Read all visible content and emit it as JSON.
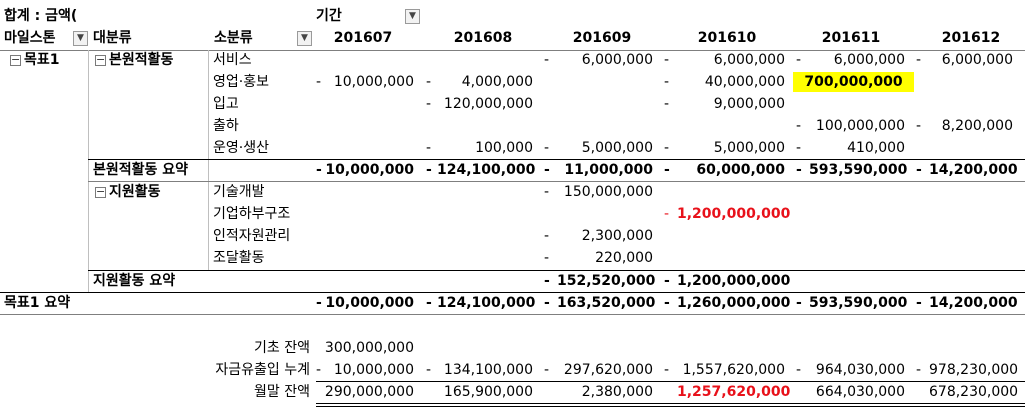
{
  "pivot": {
    "corner_label": "합계 : 금액(",
    "period_label": "기간",
    "milestone_label": "마일스톤",
    "category_label": "대분류",
    "subcategory_label": "소분류",
    "columns": [
      "201607",
      "201608",
      "201609",
      "201610",
      "201611",
      "201612"
    ],
    "dash": "-",
    "goal": "목표1",
    "group1": {
      "label": "본원적활동",
      "rows": [
        {
          "label": "서비스",
          "values": [
            "",
            "",
            "6,000,000",
            "6,000,000",
            "6,000,000",
            "6,000,000"
          ]
        },
        {
          "label": "영업·홍보",
          "values": [
            "10,000,000",
            "4,000,000",
            "",
            "40,000,000",
            "700,000,000",
            ""
          ]
        },
        {
          "label": "입고",
          "values": [
            "",
            "120,000,000",
            "",
            "9,000,000",
            "",
            ""
          ]
        },
        {
          "label": "출하",
          "values": [
            "",
            "",
            "",
            "",
            "100,000,000",
            "8,200,000"
          ]
        },
        {
          "label": "운영·생산",
          "values": [
            "",
            "100,000",
            "5,000,000",
            "5,000,000",
            "410,000",
            ""
          ]
        }
      ],
      "summary_label": "본원적활동 요약",
      "summary": [
        "10,000,000",
        "124,100,000",
        "11,000,000",
        "60,000,000",
        "593,590,000",
        "14,200,000"
      ]
    },
    "group2": {
      "label": "지원활동",
      "rows": [
        {
          "label": "기술개발",
          "values": [
            "",
            "",
            "150,000,000",
            "",
            "",
            ""
          ]
        },
        {
          "label": "기업하부구조",
          "values": [
            "",
            "",
            "",
            "1,200,000,000",
            "",
            ""
          ]
        },
        {
          "label": "인적자원관리",
          "values": [
            "",
            "",
            "2,300,000",
            "",
            "",
            ""
          ]
        },
        {
          "label": "조달활동",
          "values": [
            "",
            "",
            "220,000",
            "",
            "",
            ""
          ]
        }
      ],
      "summary_label": "지원활동 요약",
      "summary": [
        "",
        "",
        "152,520,000",
        "1,200,000,000",
        "",
        ""
      ]
    },
    "goal_summary_label": "목표1 요약",
    "goal_summary": [
      "10,000,000",
      "124,100,000",
      "163,520,000",
      "1,260,000,000",
      "593,590,000",
      "14,200,000"
    ]
  },
  "balance": {
    "opening_label": "기초 잔액",
    "opening_value": "300,000,000",
    "cumulative_label": "자금유출입 누계",
    "cumulative": [
      "10,000,000",
      "134,100,000",
      "297,620,000",
      "1,557,620,000",
      "964,030,000",
      "978,230,000"
    ],
    "closing_label": "월말 잔액",
    "closing": [
      "290,000,000",
      "165,900,000",
      "2,380,000",
      "1,257,620,000",
      "664,030,000",
      "678,230,000"
    ]
  },
  "colors": {
    "highlight": "#ffff00",
    "negative_red": "#e8111a"
  },
  "icons": {
    "filter": "filter-dropdown-icon",
    "collapse": "collapse-minus-icon"
  }
}
